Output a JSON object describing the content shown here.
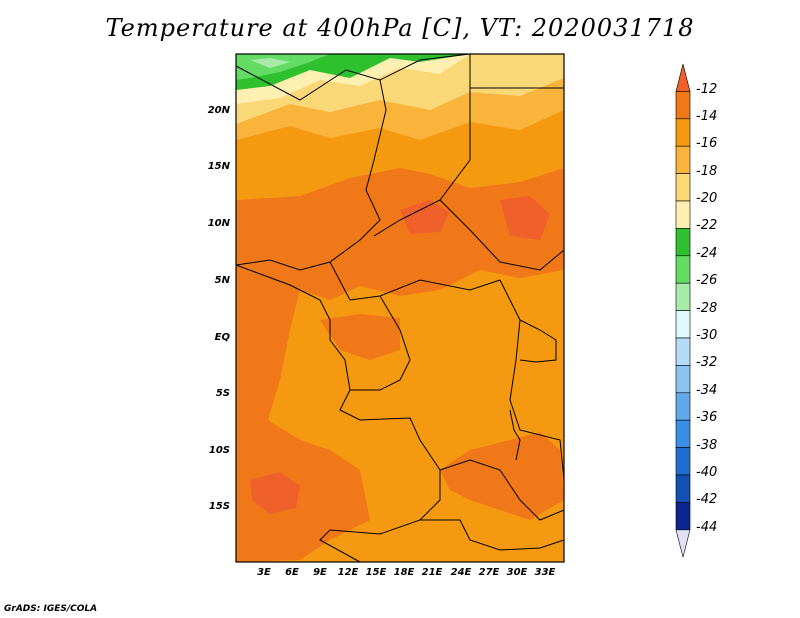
{
  "title": "Temperature at 400hPa [C], VT: 2020031718",
  "credit": "GrADS: IGES/COLA",
  "map": {
    "lat_labels": [
      "20N",
      "15N",
      "10N",
      "5N",
      "EQ",
      "5S",
      "10S",
      "15S"
    ],
    "lon_labels": [
      "3E",
      "6E",
      "9E",
      "12E",
      "15E",
      "18E",
      "21E",
      "24E",
      "27E",
      "30E",
      "33E"
    ]
  },
  "colorbar": {
    "labels": [
      "-12",
      "-14",
      "-16",
      "-18",
      "-20",
      "-22",
      "-24",
      "-26",
      "-28",
      "-30",
      "-32",
      "-34",
      "-36",
      "-38",
      "-40",
      "-42",
      "-44"
    ],
    "colors": [
      "#f0602a",
      "#f07818",
      "#f59a10",
      "#fab43c",
      "#fad878",
      "#fef0b0",
      "#2ec02e",
      "#64dc64",
      "#a8eaa8",
      "#ddf8ff",
      "#b4dcf8",
      "#8cc4f0",
      "#5fa8ea",
      "#3a8ee6",
      "#1e6ed2",
      "#1450b4",
      "#0c2890",
      "#e0e0f8"
    ]
  },
  "colors": {
    "t_m12": "#f0602a",
    "t_m14": "#f07818",
    "t_m16": "#f59a10",
    "t_m18": "#fab43c",
    "t_m20": "#fad878",
    "t_m22": "#fef0b0",
    "t_m24": "#2ec02e",
    "t_m26": "#64dc64",
    "t_m28": "#a8eaa8"
  }
}
